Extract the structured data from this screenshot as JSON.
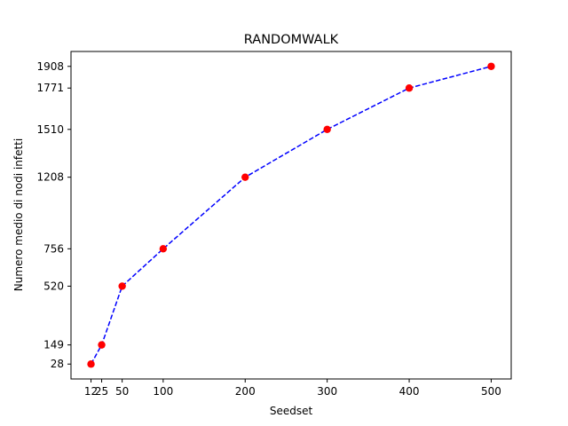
{
  "chart_data": {
    "type": "line",
    "title": "RANDOMWALK",
    "xlabel": "Seedset",
    "ylabel": "Numero medio di nodi infetti",
    "x": [
      12,
      25,
      50,
      100,
      200,
      300,
      400,
      500
    ],
    "y": [
      28,
      149,
      520,
      756,
      1208,
      1510,
      1771,
      1908
    ],
    "x_ticks": [
      12,
      25,
      50,
      100,
      200,
      300,
      400,
      500
    ],
    "x_tick_labels": [
      "12",
      "25",
      "50",
      "100",
      "200",
      "300",
      "400",
      "500"
    ],
    "y_ticks": [
      28,
      149,
      520,
      756,
      1208,
      1510,
      1771,
      1908
    ],
    "y_tick_labels": [
      "28",
      "149",
      "520",
      "756",
      "1208",
      "1510",
      "1771",
      "1908"
    ],
    "xlim": [
      -12.4,
      524.4
    ],
    "ylim": [
      -66,
      2002
    ],
    "grid": false,
    "line_color": "#0000ff",
    "line_style": "dashed",
    "marker_color": "#ff0000",
    "marker": "circle"
  }
}
